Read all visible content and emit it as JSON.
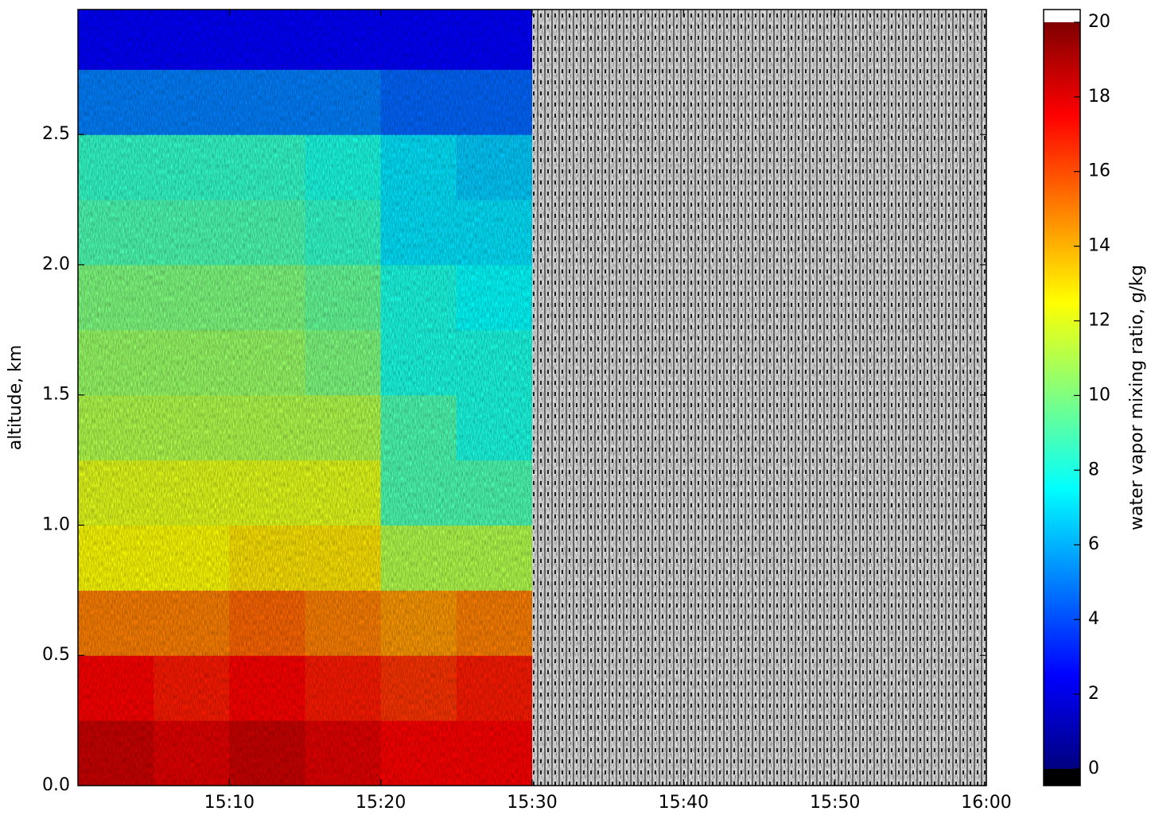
{
  "chart_data": {
    "type": "heatmap",
    "ylabel": "altitude, km",
    "colorbar_label": "water vapor mixing ratio, g/kg",
    "xbins": [
      "15:00",
      "15:05",
      "15:10",
      "15:15",
      "15:20",
      "15:25",
      "15:30",
      "15:35",
      "15:40",
      "15:45",
      "15:50",
      "15:55",
      "16:00"
    ],
    "ybins": [
      0,
      0.25,
      0.5,
      0.75,
      1.0,
      1.25,
      1.5,
      1.75,
      2.0,
      2.25,
      2.5,
      2.75,
      2.98
    ],
    "values": [
      [
        18.5,
        18,
        18.5,
        18,
        17.5,
        17.5,
        null,
        null,
        null,
        null,
        null,
        null
      ],
      [
        17.5,
        17,
        17.5,
        17,
        16.5,
        17,
        null,
        null,
        null,
        null,
        null,
        null
      ],
      [
        15,
        15,
        15.5,
        15,
        14.5,
        15,
        null,
        null,
        null,
        null,
        null,
        null
      ],
      [
        12.5,
        12.5,
        13,
        13,
        11,
        11,
        null,
        null,
        null,
        null,
        null,
        null
      ],
      [
        12,
        12,
        12,
        12,
        9,
        9,
        null,
        null,
        null,
        null,
        null,
        null
      ],
      [
        11,
        11,
        11,
        11,
        9,
        8,
        null,
        null,
        null,
        null,
        null,
        null
      ],
      [
        10.5,
        10.5,
        10.5,
        10,
        8,
        8,
        null,
        null,
        null,
        null,
        null,
        null
      ],
      [
        10,
        10,
        10,
        9.5,
        8,
        7.5,
        null,
        null,
        null,
        null,
        null,
        null
      ],
      [
        9,
        9,
        9,
        8.5,
        7,
        7,
        null,
        null,
        null,
        null,
        null,
        null
      ],
      [
        8.5,
        8.5,
        8.5,
        8,
        7,
        6.5,
        null,
        null,
        null,
        null,
        null,
        null
      ],
      [
        5,
        5,
        5,
        5,
        4.5,
        4.5,
        null,
        null,
        null,
        null,
        null,
        null
      ],
      [
        2.5,
        2.5,
        2.5,
        2.5,
        2.5,
        2.5,
        null,
        null,
        null,
        null,
        null,
        null
      ]
    ],
    "colormap": "jet",
    "clim": [
      0,
      20
    ],
    "cbar_lim": [
      -0.45,
      20.34
    ],
    "cbar_ticks": [
      0,
      2,
      4,
      6,
      8,
      10,
      12,
      14,
      16,
      18,
      20
    ],
    "xlim": [
      "15:00",
      "16:00"
    ],
    "xticks": [
      "15:10",
      "15:20",
      "15:30",
      "15:40",
      "15:50",
      "16:00"
    ],
    "ylim": [
      0,
      2.98
    ],
    "yticks": [
      {
        "value": 0,
        "label": "0.0"
      },
      {
        "value": 0.5,
        "label": "0.5"
      },
      {
        "value": 1.0,
        "label": "1.0"
      },
      {
        "value": 1.5,
        "label": "1.5"
      },
      {
        "value": 2.0,
        "label": "2.0"
      },
      {
        "value": 2.5,
        "label": "2.5"
      }
    ]
  }
}
